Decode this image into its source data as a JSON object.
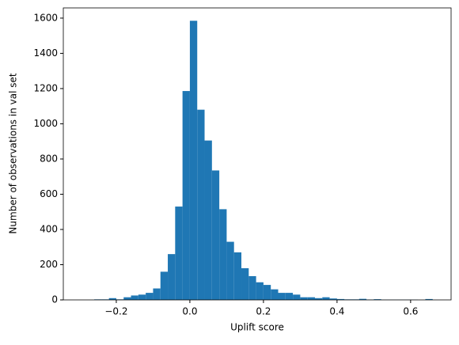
{
  "chart_data": {
    "type": "histogram",
    "xlabel": "Uplift score",
    "ylabel": "Number of observations in val set",
    "bins": [
      -0.26,
      -0.24,
      -0.22,
      -0.2,
      -0.18,
      -0.16,
      -0.14,
      -0.12,
      -0.1,
      -0.08,
      -0.06,
      -0.04,
      -0.02,
      0,
      0.02,
      0.04,
      0.06,
      0.08,
      0.1,
      0.12,
      0.14,
      0.16,
      0.18,
      0.2,
      0.22,
      0.24,
      0.26,
      0.28,
      0.3,
      0.32,
      0.34,
      0.36,
      0.38,
      0.4,
      0.42,
      0.44,
      0.46,
      0.48,
      0.5,
      0.52,
      0.54,
      0.56,
      0.58,
      0.6,
      0.62,
      0.64,
      0.66
    ],
    "values": [
      3,
      3,
      10,
      3,
      15,
      25,
      30,
      40,
      65,
      160,
      260,
      530,
      1186,
      1585,
      1080,
      905,
      735,
      515,
      330,
      270,
      180,
      135,
      100,
      85,
      60,
      40,
      40,
      30,
      15,
      15,
      10,
      15,
      8,
      5,
      3,
      3,
      6,
      2,
      4,
      1,
      1,
      1,
      1,
      1,
      0,
      5
    ],
    "color": "#1f77b4",
    "xlim": [
      -0.344,
      0.71
    ],
    "ylim": [
      0,
      1658
    ],
    "xticks": [
      {
        "value": -0.2,
        "label": "−0.2"
      },
      {
        "value": 0,
        "label": "0.0"
      },
      {
        "value": 0.2,
        "label": "0.2"
      },
      {
        "value": 0.4,
        "label": "0.4"
      },
      {
        "value": 0.6,
        "label": "0.6"
      }
    ],
    "yticks": [
      0,
      200,
      400,
      600,
      800,
      1000,
      1200,
      1400,
      1600
    ]
  }
}
